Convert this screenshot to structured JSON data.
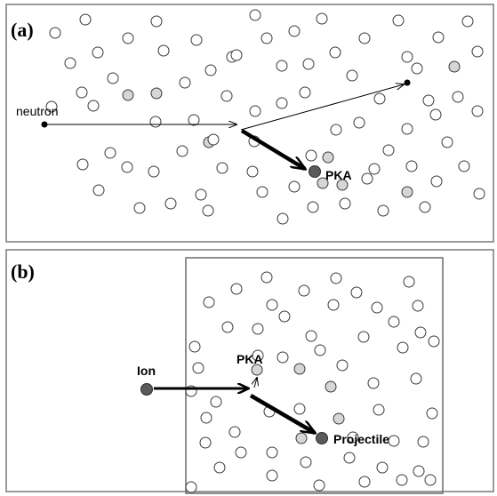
{
  "panel_a": {
    "label": "(a)",
    "incident_label": "neutron",
    "pka_label": "PKA"
  },
  "panel_b": {
    "label": "(b)",
    "ion_label": "Ion",
    "pka_label": "PKA",
    "projectile_label": "Projectile"
  },
  "colors": {
    "lattice_atom": "#ffffff",
    "displaced_atom": "#d6d6d6",
    "primary_particle": "#5a5a5a",
    "outline": "#3a3a3a"
  }
}
